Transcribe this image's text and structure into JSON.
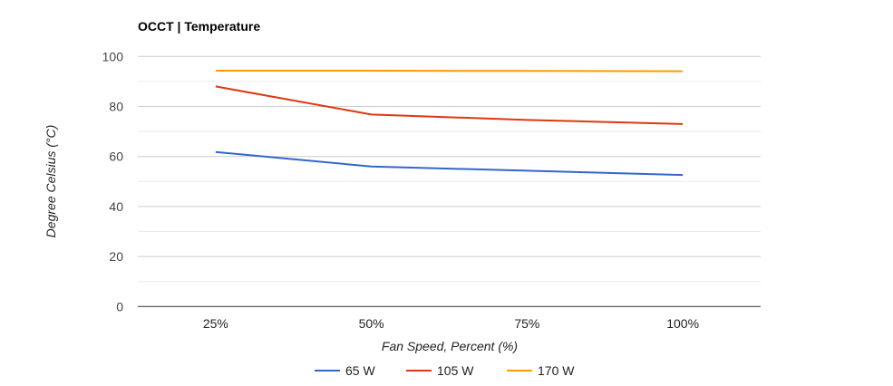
{
  "chart_data": {
    "type": "line",
    "title": "OCCT | Temperature",
    "xlabel": "Fan Speed, Percent (%)",
    "ylabel": "Degree Celsius (°C)",
    "categories": [
      "25%",
      "50%",
      "75%",
      "100%"
    ],
    "ylim": [
      0,
      100
    ],
    "yticks": [
      0,
      20,
      40,
      60,
      80,
      100
    ],
    "grid": true,
    "legend": "bottom",
    "series": [
      {
        "name": "65 W",
        "color": "#3366cc",
        "values": [
          61.8,
          56.0,
          54.3,
          52.6
        ]
      },
      {
        "name": "105 W",
        "color": "#dc3912",
        "values": [
          88.0,
          76.8,
          74.6,
          73.0
        ]
      },
      {
        "name": "170 W",
        "color": "#ff9900",
        "values": [
          94.3,
          94.3,
          94.2,
          94.1
        ]
      }
    ]
  }
}
